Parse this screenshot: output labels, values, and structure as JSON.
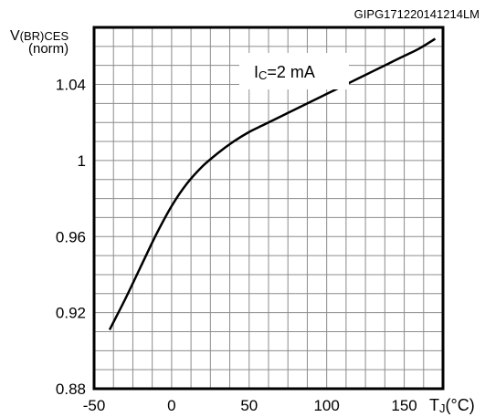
{
  "chart_data": {
    "type": "line",
    "title": "",
    "corner_label": "GIPG171220141214LM",
    "ylabel": {
      "main": "V",
      "subscript": "(BR)CES",
      "second_line": "(norm)"
    },
    "xlabel": {
      "main": "T",
      "subscript": "J",
      "suffix": "(°C)"
    },
    "annotation": {
      "main": "I",
      "subscript": "C",
      "suffix": "=2 mA"
    },
    "xlim": [
      -50,
      175
    ],
    "ylim": [
      0.88,
      1.07
    ],
    "x_ticks": [
      -50,
      0,
      50,
      100,
      150
    ],
    "x_tick_labels": [
      "-50",
      "0",
      "50",
      "100",
      "150"
    ],
    "y_ticks": [
      0.88,
      0.92,
      0.96,
      1.0,
      1.04
    ],
    "y_tick_labels": [
      "0.88",
      "0.92",
      "0.96",
      "1",
      "1.04"
    ],
    "grid": true,
    "series": [
      {
        "x": [
          -40,
          -30,
          -20,
          -10,
          0,
          10,
          20,
          30,
          40,
          50,
          60,
          75,
          90,
          100,
          110,
          125,
          140,
          150,
          160,
          170
        ],
        "y": [
          0.911,
          0.927,
          0.944,
          0.961,
          0.976,
          0.988,
          0.997,
          1.004,
          1.01,
          1.015,
          1.019,
          1.025,
          1.031,
          1.035,
          1.039,
          1.045,
          1.051,
          1.055,
          1.059,
          1.064
        ]
      }
    ]
  }
}
